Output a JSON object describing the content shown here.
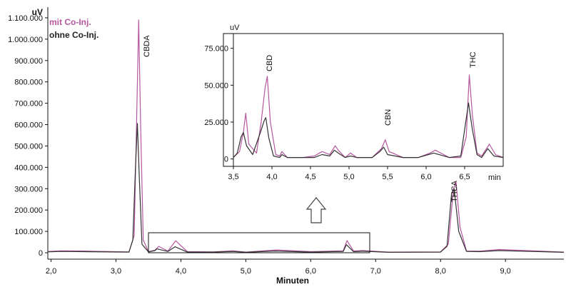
{
  "chart_data": [
    {
      "type": "line",
      "ylabel": "uV",
      "xlabel": "Minuten",
      "xlim": [
        1.95,
        9.9
      ],
      "ylim": [
        -30000,
        1150000
      ],
      "x_ticks": [
        2.0,
        3.0,
        4.0,
        5.0,
        6.0,
        7.0,
        8.0,
        9.0
      ],
      "x_tick_labels": [
        "2,0",
        "3,0",
        "4,0",
        "5,0",
        "6,0",
        "7,0",
        "8,0",
        "9,0"
      ],
      "y_ticks": [
        0,
        100000,
        200000,
        300000,
        400000,
        500000,
        600000,
        700000,
        800000,
        900000,
        1000000,
        1100000
      ],
      "y_tick_labels": [
        "0",
        "100.000",
        "200.000",
        "300.000",
        "400.000",
        "500.000",
        "600.000",
        "700.000",
        "800.000",
        "900.000",
        "1.000.000",
        "1.100.000"
      ],
      "grid": false,
      "legend_position": "top-left",
      "series": [
        {
          "name": "mit Co-Inj.",
          "color": "#b5589f",
          "x": [
            1.95,
            2.15,
            2.5,
            3.2,
            3.28,
            3.32,
            3.35,
            3.38,
            3.42,
            3.5,
            3.6,
            3.66,
            3.8,
            3.92,
            4.1,
            4.5,
            4.8,
            5.0,
            5.47,
            6.0,
            6.5,
            6.56,
            6.66,
            6.8,
            7.2,
            8.0,
            8.12,
            8.2,
            8.24,
            8.3,
            8.4,
            8.6,
            8.9,
            9.9
          ],
          "y": [
            6000,
            9000,
            8000,
            4000,
            80000,
            650000,
            1090000,
            600000,
            60000,
            5000,
            12000,
            30000,
            8000,
            56000,
            5000,
            4000,
            9000,
            3000,
            13000,
            5000,
            9000,
            57000,
            8000,
            10000,
            3000,
            4000,
            40000,
            300000,
            330000,
            120000,
            8000,
            7000,
            15000,
            3000
          ]
        },
        {
          "name": "ohne Co-Inj.",
          "color": "#333333",
          "x": [
            1.95,
            2.15,
            2.5,
            3.2,
            3.26,
            3.3,
            3.33,
            3.36,
            3.4,
            3.5,
            3.6,
            3.63,
            3.8,
            3.91,
            4.1,
            4.5,
            4.8,
            5.0,
            5.45,
            6.0,
            6.5,
            6.55,
            6.66,
            6.8,
            7.2,
            8.0,
            8.1,
            8.17,
            8.21,
            8.28,
            8.4,
            8.6,
            8.9,
            9.9
          ],
          "y": [
            4000,
            6000,
            5000,
            3000,
            60000,
            400000,
            605000,
            350000,
            40000,
            4000,
            10000,
            18000,
            6000,
            28000,
            3000,
            3000,
            6000,
            2000,
            8000,
            3000,
            6000,
            38000,
            5000,
            7000,
            2000,
            3000,
            30000,
            280000,
            300000,
            100000,
            6000,
            5000,
            10000,
            2000
          ]
        }
      ],
      "annotations": [
        "CBDA",
        "THCA"
      ]
    },
    {
      "type": "line",
      "ylabel": "uV",
      "xlabel": "min",
      "xlim": [
        3.5,
        7.0
      ],
      "ylim": [
        -5000,
        85000
      ],
      "x_ticks": [
        3.5,
        4.0,
        4.5,
        5.0,
        5.5,
        6.0,
        6.5
      ],
      "x_tick_labels": [
        "3,5",
        "4,0",
        "4,5",
        "5,0",
        "5,5",
        "6,0",
        "6,5"
      ],
      "y_ticks": [
        0,
        25000,
        50000,
        75000
      ],
      "y_tick_labels": [
        "0",
        "25.000",
        "50.000",
        "75.000"
      ],
      "grid": false,
      "series": [
        {
          "name": "mit Co-Inj.",
          "color": "#b5589f",
          "x": [
            3.5,
            3.58,
            3.63,
            3.66,
            3.7,
            3.8,
            3.86,
            3.91,
            3.94,
            3.98,
            4.05,
            4.1,
            4.13,
            4.2,
            4.4,
            4.55,
            4.65,
            4.75,
            4.82,
            4.86,
            4.95,
            5.02,
            5.1,
            5.3,
            5.42,
            5.47,
            5.52,
            5.7,
            5.9,
            6.05,
            6.12,
            6.3,
            6.45,
            6.52,
            6.56,
            6.6,
            6.66,
            6.72,
            6.82,
            6.9,
            7.0
          ],
          "y": [
            1000,
            5000,
            18000,
            31000,
            10000,
            4000,
            25000,
            48000,
            56000,
            25000,
            3000,
            2000,
            5000,
            1000,
            1000,
            2000,
            5000,
            3000,
            9000,
            6000,
            1000,
            4000,
            1000,
            1000,
            7000,
            13000,
            5000,
            1000,
            1000,
            4000,
            6000,
            1000,
            1000,
            15000,
            57000,
            30000,
            4000,
            2000,
            10000,
            3000,
            1000
          ]
        },
        {
          "name": "ohne Co-Inj.",
          "color": "#333333",
          "x": [
            3.5,
            3.55,
            3.6,
            3.63,
            3.67,
            3.75,
            3.85,
            3.9,
            3.92,
            3.96,
            4.02,
            4.1,
            4.13,
            4.2,
            4.4,
            4.55,
            4.65,
            4.75,
            4.81,
            4.86,
            4.95,
            5.02,
            5.1,
            5.3,
            5.4,
            5.45,
            5.5,
            5.7,
            5.9,
            6.03,
            6.1,
            6.3,
            6.45,
            6.5,
            6.55,
            6.6,
            6.66,
            6.72,
            6.8,
            6.88,
            7.0
          ],
          "y": [
            1000,
            4000,
            15000,
            18000,
            9000,
            3000,
            18000,
            26000,
            28000,
            14000,
            2000,
            1000,
            3000,
            1000,
            1000,
            1000,
            3000,
            2000,
            6000,
            4000,
            1000,
            2000,
            1000,
            1000,
            5000,
            8000,
            3000,
            1000,
            1000,
            3000,
            4000,
            1000,
            2000,
            20000,
            38000,
            20000,
            3000,
            1000,
            7000,
            2000,
            1000
          ]
        }
      ],
      "annotations": [
        "CBD",
        "CBN",
        "THC"
      ]
    }
  ],
  "legend": [
    {
      "label": "mit Co-Inj.",
      "color": "#b5589f"
    },
    {
      "label": "ohne Co-Inj.",
      "color": "#222222"
    }
  ]
}
